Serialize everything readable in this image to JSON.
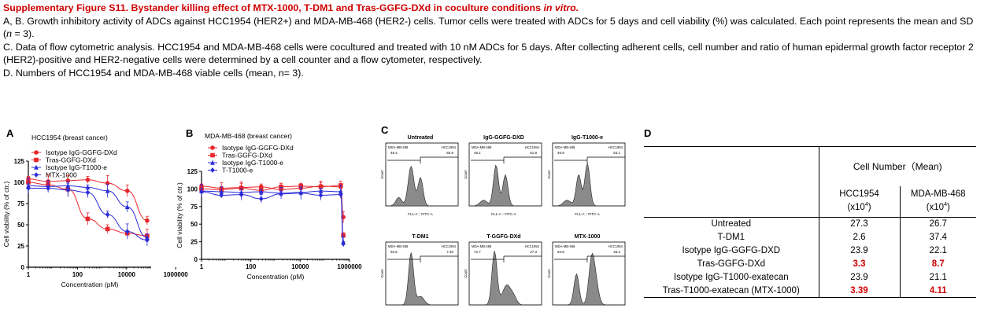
{
  "caption": {
    "title": "Supplementary Figure S11. Bystander killing effect of MTX-1000, T-DM1 and Tras-GGFG-DXd in coculture conditions ",
    "title_italic": "in vitro.",
    "line_ab": "A, B. Growth inhibitory activity of ADCs against HCC1954 (HER2+) and MDA-MB-468 (HER2-) cells. Tumor cells were treated with ADCs for 5 days and cell viability (%) was calculated. Each point represents the mean and SD (",
    "line_ab_n": "n",
    "line_ab_end": " = 3).",
    "line_c": "C. Data of flow cytometric analysis. HCC1954 and MDA-MB-468 cells were cocultured and treated with 10 nM ADCs for 5 days. After collecting adherent cells, cell number and ratio of human epidermal growth factor receptor 2 (HER2)-positive and HER2-negative cells were determined by a cell counter and a flow cytometer, respectively.",
    "line_d": "D. Numbers of HCC1954 and MDA-MB-468 viable cells (mean, n= 3)."
  },
  "panels": {
    "a": "A",
    "b": "B",
    "c": "C",
    "d": "D"
  },
  "colors": {
    "red": "#e8262b",
    "blue": "#2b2bd8",
    "highlight": "#d00000",
    "hist_fill": "#8a8a8a"
  },
  "chart_data": [
    {
      "type": "scatter",
      "panel": "A",
      "title": "HCC1954 (breast cancer)",
      "xlabel": "Concentration (pM)",
      "ylabel": "Cell viability (% of ctr.)",
      "xscale": "log",
      "xlim": [
        1,
        100000
      ],
      "xticks": [
        "1",
        "100",
        "10000",
        "1000000"
      ],
      "ylim": [
        0,
        125
      ],
      "yticks": [
        "0",
        "25",
        "50",
        "75",
        "100",
        "125"
      ],
      "legend": "top-left",
      "x": [
        1,
        6.4,
        41,
        262,
        1680,
        10700,
        68600
      ],
      "series": [
        {
          "name": "Isotype IgG-GGFG-DXd",
          "color": "red",
          "marker": "circle",
          "values": [
            104,
            101,
            102,
            103,
            99,
            90,
            55
          ]
        },
        {
          "name": "Tras-GGFG-DXd",
          "color": "red",
          "marker": "square",
          "values": [
            100,
            97,
            92,
            57,
            45,
            40,
            37
          ]
        },
        {
          "name": "Isotype IgG-T1000-e",
          "color": "blue",
          "marker": "triangle",
          "values": [
            96,
            95,
            96,
            94,
            90,
            71,
            35
          ]
        },
        {
          "name": "MTX-1000",
          "color": "blue",
          "marker": "diamond",
          "values": [
            93,
            93,
            91,
            88,
            62,
            42,
            32
          ]
        }
      ]
    },
    {
      "type": "scatter",
      "panel": "B",
      "title": "MDA-MB-468 (breast cancer)",
      "xlabel": "Concentration (pM)",
      "ylabel": "Cell viability (% of ctr.)",
      "xscale": "log",
      "xlim": [
        1,
        1000000
      ],
      "xticks": [
        "1",
        "100",
        "10000",
        "1000000"
      ],
      "ylim": [
        0,
        125
      ],
      "yticks": [
        "0",
        "25",
        "50",
        "75",
        "100",
        "125"
      ],
      "legend": "top-left",
      "x": [
        1,
        6.4,
        41,
        262,
        1680,
        10700,
        68600,
        440000,
        560000
      ],
      "series": [
        {
          "name": "Isotype IgG-GGFG-DXd",
          "color": "red",
          "marker": "circle",
          "values": [
            104,
            101,
            102,
            103,
            99,
            101,
            104,
            103,
            60
          ]
        },
        {
          "name": "Tras-GGFG-DXd",
          "color": "red",
          "marker": "square",
          "values": [
            100,
            99,
            101,
            98,
            103,
            104,
            103,
            105,
            34
          ]
        },
        {
          "name": "Isotype IgG-T1000-e",
          "color": "blue",
          "marker": "triangle",
          "values": [
            97,
            96,
            95,
            96,
            94,
            95,
            97,
            96,
            25
          ]
        },
        {
          "name": "T-T1000-e",
          "color": "blue",
          "marker": "diamond",
          "values": [
            96,
            91,
            92,
            86,
            93,
            94,
            91,
            92,
            22
          ]
        }
      ]
    }
  ],
  "flow": {
    "xaxis": "FL1-A :: FITC-A",
    "yaxis": "Count",
    "neg_label": "MDA-MB-468",
    "pos_label": "HCC1954",
    "plots": [
      {
        "title": "Untreated",
        "neg": "49.4",
        "pos": "50.6",
        "xlabel": "FL1-A :: FITC-A"
      },
      {
        "title": "IgG-GGFG-DXD",
        "neg": "48.1",
        "pos": "51.9",
        "xlabel": "FL1-A :: FITC-A"
      },
      {
        "title": "IgG-T1000-e",
        "neg": "46.9",
        "pos": "53.1",
        "xlabel": "FL1-A :: FITC-A"
      },
      {
        "title": "T-DM1",
        "neg": "92.6",
        "pos": "7.40",
        "xlabel": ""
      },
      {
        "title": "T-GGFG-DXd",
        "neg": "72.7",
        "pos": "27.3",
        "xlabel": ""
      },
      {
        "title": "MTX-1000",
        "neg": "54.8",
        "pos": "45.2",
        "xlabel": ""
      }
    ]
  },
  "table": {
    "group_header": "Cell Number（Mean)",
    "col1": "HCC1954",
    "col1_unit": "(x10",
    "col2": "MDA-MB-468",
    "col2_unit": "(x10",
    "exp": "4",
    "rows": [
      {
        "label": "Untreated",
        "v1": "27.3",
        "v2": "26.7",
        "hl": false
      },
      {
        "label": "T-DM1",
        "v1": "2.6",
        "v2": "37.4",
        "hl": false
      },
      {
        "label": "Isotype IgG-GGFG-DXD",
        "v1": "23.9",
        "v2": "22.1",
        "hl": false
      },
      {
        "label": "Tras-GGFG-DXd",
        "v1": "3.3",
        "v2": "8.7",
        "hl": true
      },
      {
        "label": "Isotype IgG-T1000-exatecan",
        "v1": "23.9",
        "v2": "21.1",
        "hl": false
      },
      {
        "label": "Tras-T1000-exatecan (MTX-1000)",
        "v1": "3.39",
        "v2": "4.11",
        "hl": true
      }
    ]
  }
}
